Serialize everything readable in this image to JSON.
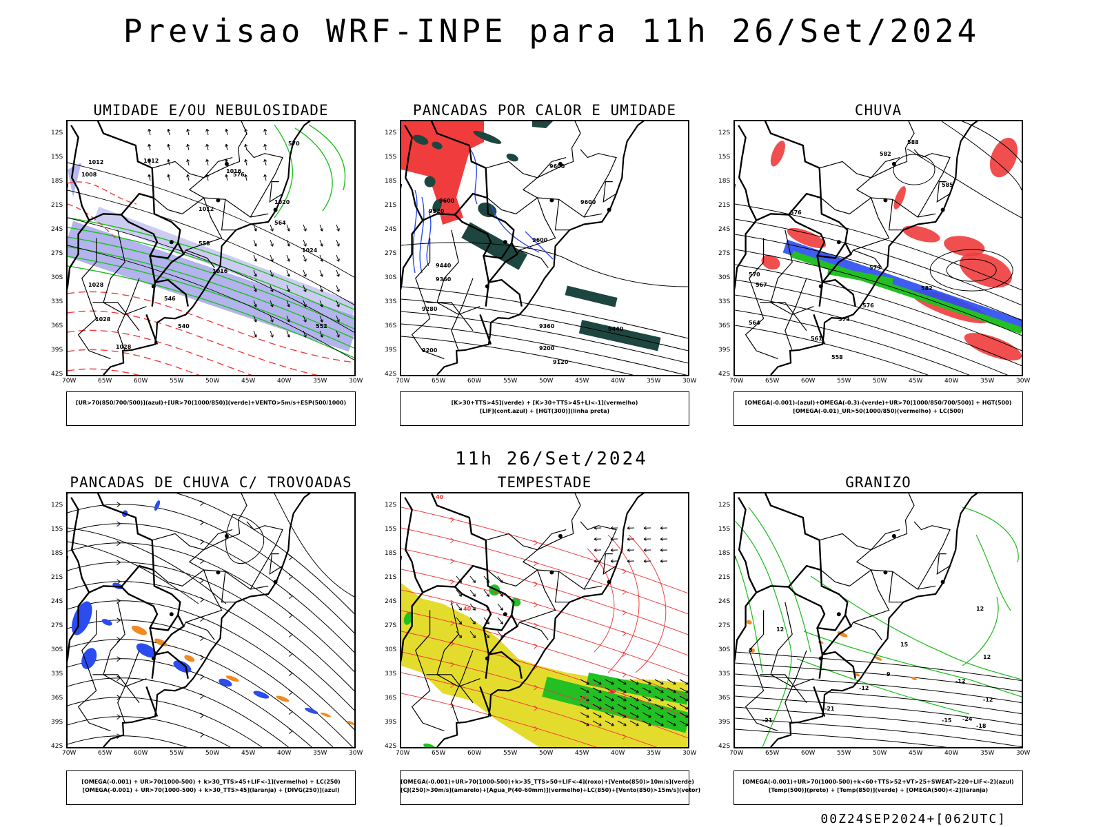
{
  "title": "Previsao WRF-INPE  para 11h 26/Set/2024",
  "subtitle": "11h 26/Set/2024",
  "footer": "00Z24SEP2024+[062UTC]",
  "lat_labels": [
    "12S",
    "15S",
    "18S",
    "21S",
    "24S",
    "27S",
    "30S",
    "33S",
    "36S",
    "39S",
    "42S"
  ],
  "lon_labels": [
    "70W",
    "65W",
    "60W",
    "55W",
    "50W",
    "45W",
    "40W",
    "35W",
    "30W"
  ],
  "colors": {
    "blue": "#2a4cf0",
    "green": "#22c022",
    "red": "#f03c3c",
    "orange": "#f08a22",
    "yellow": "#e4dc2c",
    "darkgreen": "#1e4640",
    "lavender": "#9a9ae8"
  },
  "panels": [
    {
      "title": "UMIDADE E/OU NEBULOSIDADE",
      "legend": [
        "[UR>70(850/700/500)](azul)+[UR>70(1000/850)](verde)+VENTO>5m/s+ESP(500/1000)"
      ],
      "labels": [
        "1012",
        "1008",
        "1012",
        "1016",
        "1020",
        "1024",
        "1028",
        "1028",
        "1028",
        "1016",
        "1012",
        "576",
        "570",
        "564",
        "558",
        "552",
        "546",
        "540"
      ]
    },
    {
      "title": "PANCADAS POR CALOR E UMIDADE",
      "legend": [
        "[K>30+TTS>45](verde) + [K>30+TTS>45+LI<-1](vermelho)",
        "[LIF](cont.azul) + [HGT(300)](linha preta)"
      ],
      "labels": [
        "9600",
        "9600",
        "9520",
        "9600",
        "9440",
        "9360",
        "9280",
        "9200",
        "9360",
        "9200",
        "9120",
        "9440",
        "9600"
      ]
    },
    {
      "title": "CHUVA",
      "legend": [
        "[OMEGA(-0.001)-(azul)+OMEGA(-0.3)-(verde)+UR>70(1000/850/700/500)] + HGT(500)",
        "[OMEGA(-0.01)_UR>50(1000/850)(vermelho) + LC(500)"
      ],
      "labels": [
        "588",
        "582",
        "585",
        "576",
        "570",
        "567",
        "564",
        "561",
        "558",
        "573",
        "582",
        "579",
        "576"
      ]
    },
    {
      "title": "PANCADAS DE CHUVA C/ TROVOADAS",
      "legend": [
        "[OMEGA(-0.001) + UR>70(1000-500) + k>30_TTS>45+LIF<-1](vermelho) + LC(250)",
        "[OMEGA(-0.001) + UR>70(1000-500) + k>30_TTS>45](laranja) + [DIVG(250)](azul)"
      ],
      "labels": []
    },
    {
      "title": "TEMPESTADE",
      "legend": [
        "[OMEGA(-0.001)+UR>70(1000-500)+k>35_TTS>50+LIF<-4](roxo)+[Vento(850)>10m/s](verde)",
        "[CJ(250)>30m/s](amarelo)+[Agua_P(40-60mm)](vermelho)+LC(850)+[Vento(850)>15m/s](vetor)"
      ],
      "labels": [
        "40",
        "40",
        "40",
        "40"
      ]
    },
    {
      "title": "GRANIZO",
      "legend": [
        "[OMEGA(-0.001)+UR>70(1000-500)+k<60+TTS>52+VT>25+SWEAT>220+LIF<-2](azul)",
        "[Temp(500)](preto) + [Temp(850)](verde) + [OMEGA(500)<-2](laranja)"
      ],
      "labels": [
        "-12",
        "-12",
        "-12",
        "-15",
        "-18",
        "-21",
        "-24",
        "-21",
        "12",
        "15",
        "12",
        "12",
        "9",
        "3"
      ]
    }
  ]
}
